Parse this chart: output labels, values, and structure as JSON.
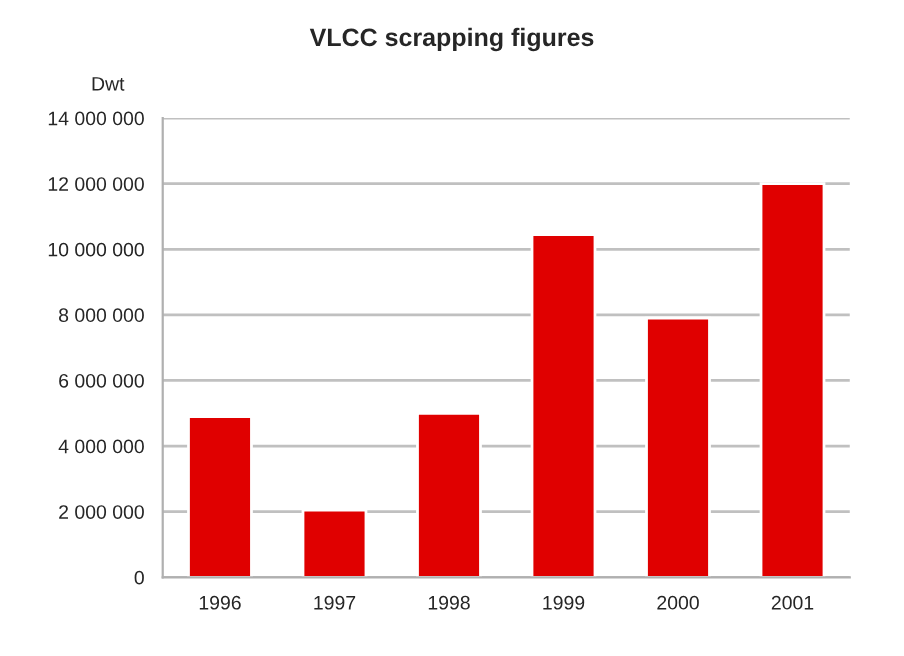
{
  "chart_data": {
    "type": "bar",
    "title": "VLCC scrapping figures",
    "ylabel": "Dwt",
    "categories": [
      "1996",
      "1997",
      "1998",
      "1999",
      "2000",
      "2001"
    ],
    "values": [
      4900000,
      2050000,
      5000000,
      10450000,
      7900000,
      12000000
    ],
    "color": "#e00000",
    "ylim": [
      0,
      14000000
    ],
    "yticks": [
      {
        "value": 0,
        "label": "0"
      },
      {
        "value": 2000000,
        "label": "2 000 000"
      },
      {
        "value": 4000000,
        "label": "4 000 000"
      },
      {
        "value": 6000000,
        "label": "6 000 000"
      },
      {
        "value": 8000000,
        "label": "8 000 000"
      },
      {
        "value": 10000000,
        "label": "10 000 000"
      },
      {
        "value": 12000000,
        "label": "12 000 000"
      },
      {
        "value": 14000000,
        "label": "14 000 000"
      }
    ],
    "grid": "y",
    "legend": false
  }
}
